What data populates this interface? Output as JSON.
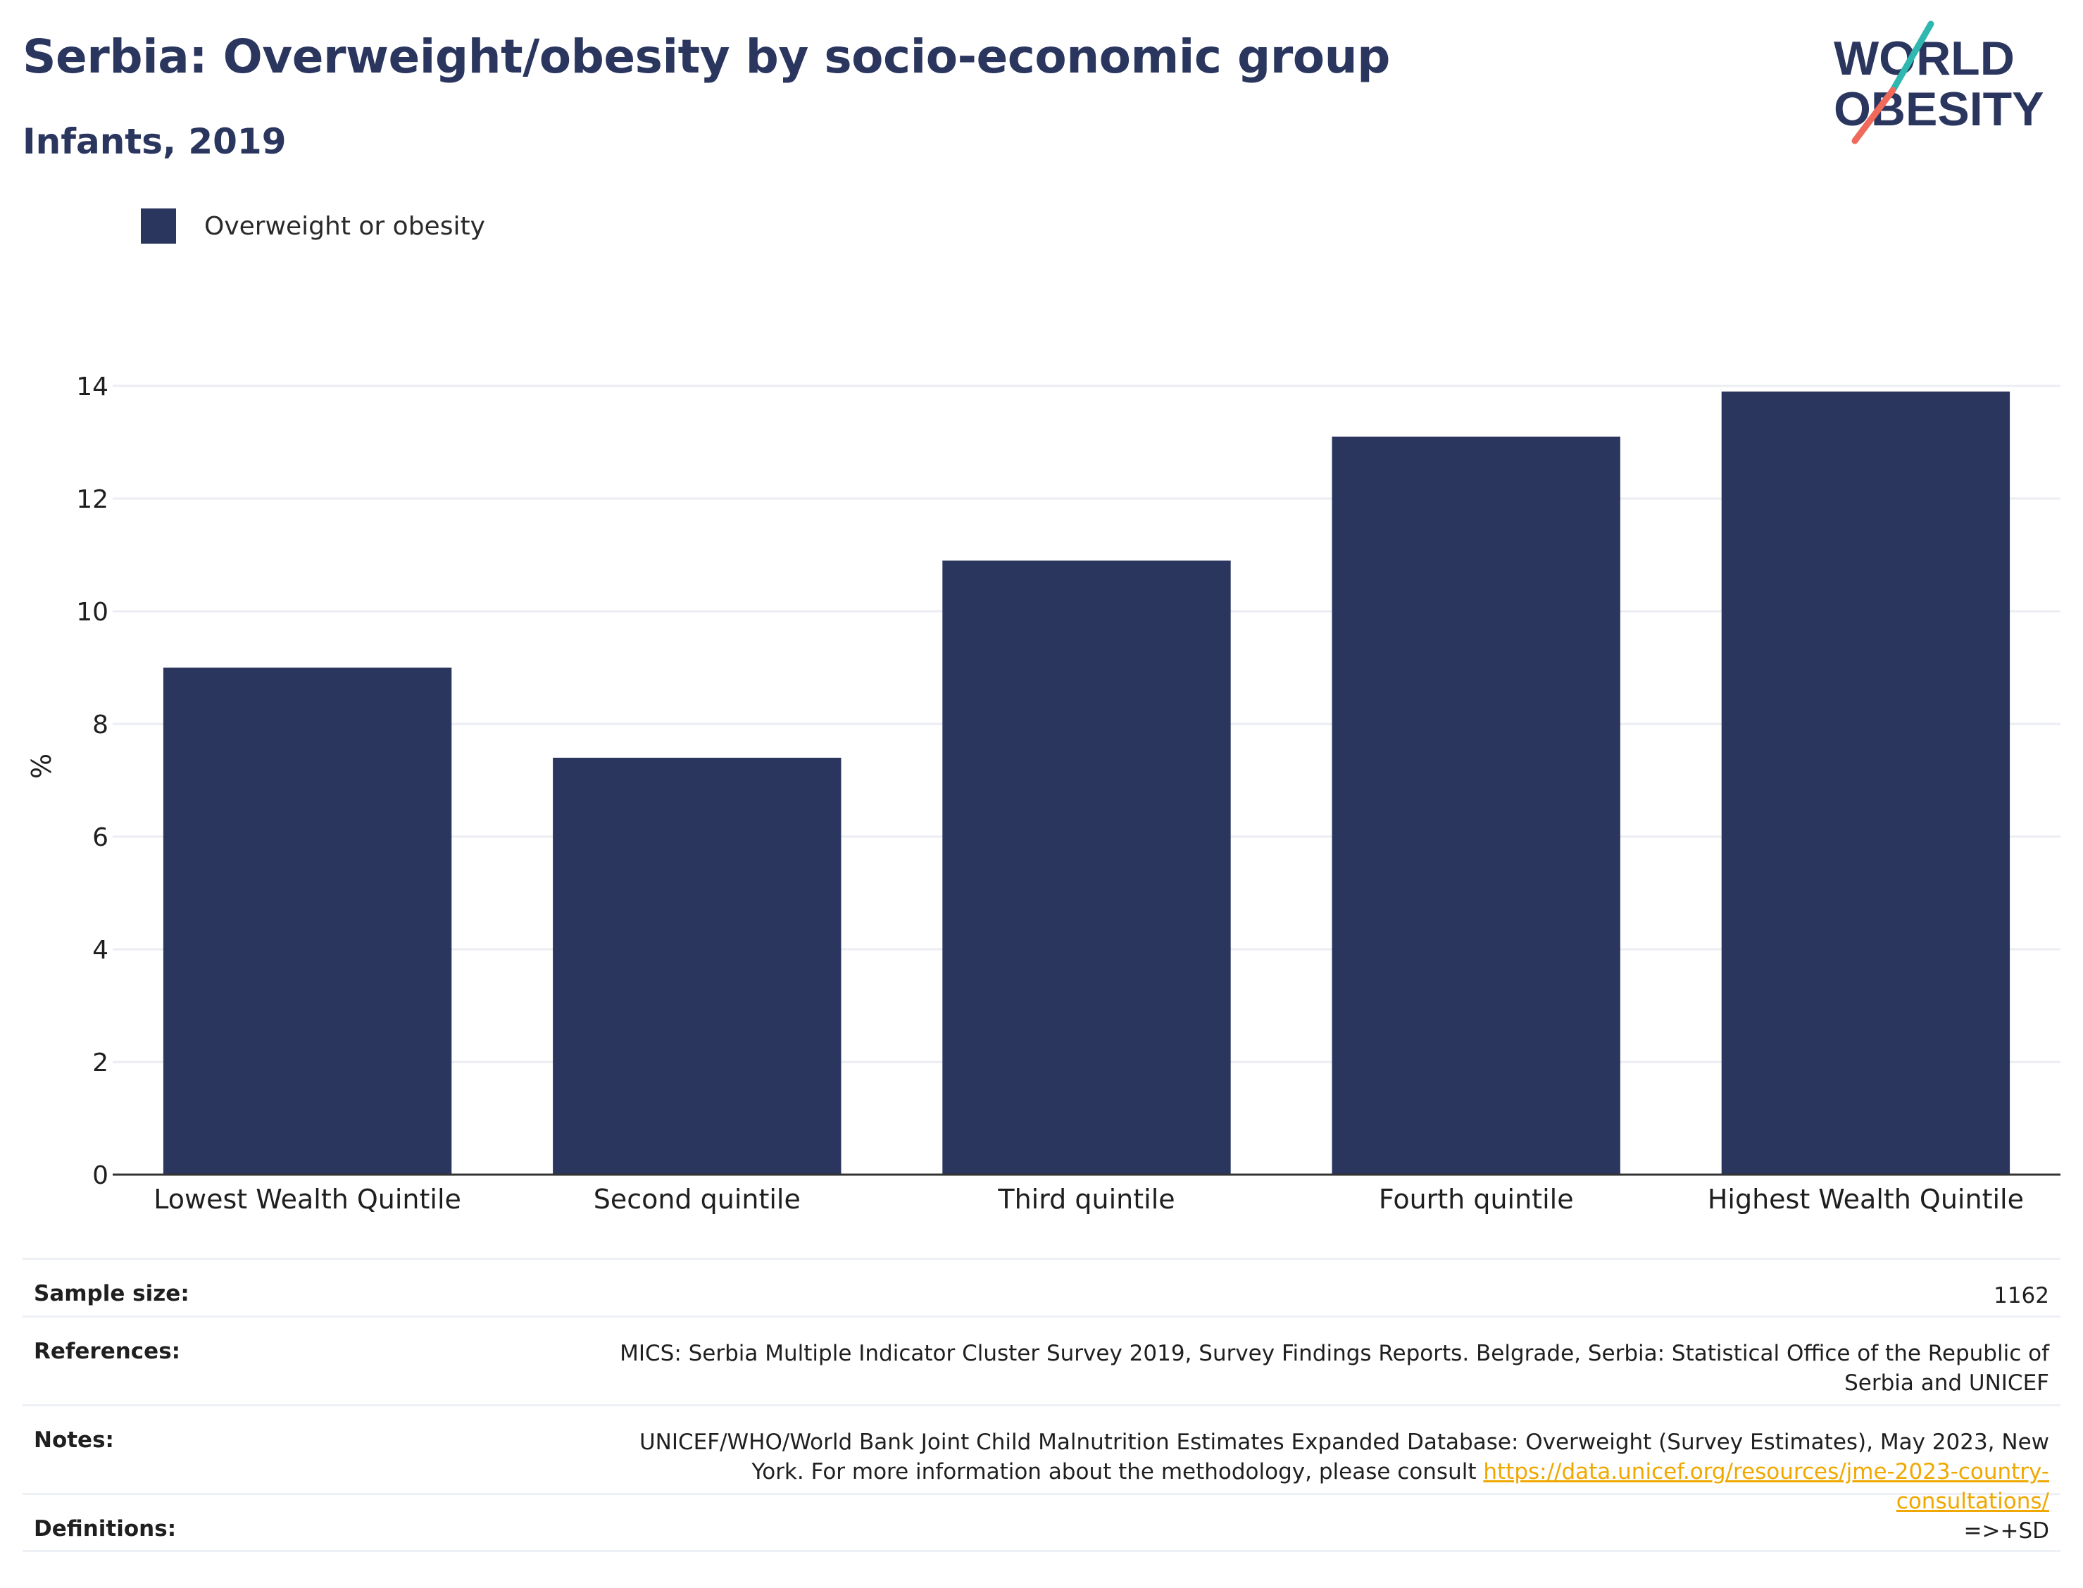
{
  "title": "Serbia: Overweight/obesity by socio-economic group",
  "subtitle": "Infants, 2019",
  "logo": {
    "line1": "WORLD",
    "line2": "OBESITY",
    "slash_colors": [
      "#2fb8b0",
      "#ef6a5a"
    ]
  },
  "legend": {
    "label": "Overweight or obesity",
    "color": "#2b365f"
  },
  "chart_data": {
    "type": "bar",
    "categories": [
      "Lowest Wealth Quintile",
      "Second quintile",
      "Third quintile",
      "Fourth quintile",
      "Highest Wealth Quintile"
    ],
    "series": [
      {
        "name": "Overweight or obesity",
        "values": [
          9.0,
          7.4,
          10.9,
          13.1,
          13.9
        ],
        "color": "#2b365f"
      }
    ],
    "ylabel": "%",
    "xlabel": "",
    "ylim": [
      0,
      14
    ],
    "yticks": [
      0,
      2,
      4,
      6,
      8,
      10,
      12,
      14
    ],
    "grid": true,
    "legend_position": "top-left"
  },
  "info": {
    "sample_size": {
      "label": "Sample size:",
      "value": "1162"
    },
    "references": {
      "label": "References:",
      "value": "MICS: Serbia Multiple Indicator Cluster Survey 2019, Survey Findings Reports. Belgrade, Serbia: Statistical Office of the Republic of Serbia and UNICEF"
    },
    "notes": {
      "label": "Notes:",
      "value": "UNICEF/WHO/World Bank Joint Child Malnutrition Estimates Expanded Database: Overweight (Survey Estimates), May 2023, New York. For more information about the methodology, please consult",
      "link": "https://data.unicef.org/resources/jme-2023-country-consultations/"
    },
    "definitions": {
      "label": "Definitions:",
      "value": "=>+SD"
    }
  }
}
